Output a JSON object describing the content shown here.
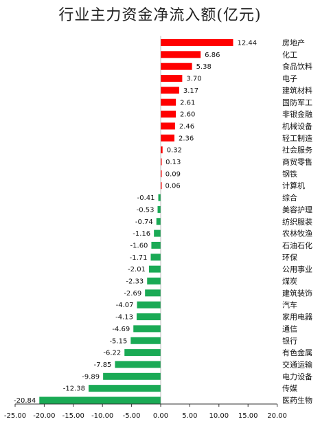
{
  "chart_data": {
    "type": "bar",
    "orientation": "horizontal",
    "title": "行业主力资金净流入额(亿元)",
    "categories": [
      "房地产",
      "化工",
      "食品饮料",
      "电子",
      "建筑材料",
      "国防军工",
      "非银金融",
      "机械设备",
      "轻工制造",
      "社会服务",
      "商贸零售",
      "钢铁",
      "计算机",
      "综合",
      "美容护理",
      "纺织服装",
      "农林牧渔",
      "石油石化",
      "环保",
      "公用事业",
      "煤炭",
      "建筑装饰",
      "汽车",
      "家用电器",
      "通信",
      "银行",
      "有色金属",
      "交通运输",
      "电力设备",
      "传媒",
      "医药生物"
    ],
    "values": [
      12.44,
      6.86,
      5.38,
      3.7,
      3.17,
      2.61,
      2.6,
      2.46,
      2.36,
      0.32,
      0.13,
      0.09,
      0.06,
      -0.41,
      -0.53,
      -0.74,
      -1.16,
      -1.6,
      -1.71,
      -2.01,
      -2.33,
      -2.69,
      -4.07,
      -4.13,
      -4.69,
      -5.15,
      -6.22,
      -7.85,
      -9.89,
      -12.38,
      -20.84
    ],
    "value_labels": [
      "12.44",
      "6.86",
      "5.38",
      "3.70",
      "3.17",
      "2.61",
      "2.60",
      "2.46",
      "2.36",
      "0.32",
      "0.13",
      "0.09",
      "0.06",
      "-0.41",
      "-0.53",
      "-0.74",
      "-1.16",
      "-1.60",
      "-1.71",
      "-2.01",
      "-2.33",
      "-2.69",
      "-4.07",
      "-4.13",
      "-4.69",
      "-5.15",
      "-6.22",
      "-7.85",
      "-9.89",
      "-12.38",
      "-20.84"
    ],
    "x_ticks": [
      -25,
      -20,
      -15,
      -10,
      -5,
      0,
      5,
      10,
      15,
      20
    ],
    "x_tick_labels": [
      "-25.00",
      "-20.00",
      "-15.00",
      "-10.00",
      "-5.00",
      "0.00",
      "5.00",
      "10.00",
      "15.00",
      "20.00"
    ],
    "xlim": [
      -25,
      20
    ],
    "xlabel": "",
    "ylabel": "",
    "grid": false,
    "legend": "none",
    "colors": {
      "positive": "#ff0000",
      "negative": "#1aaa55",
      "axis": "#333333",
      "text": "#111111"
    }
  }
}
